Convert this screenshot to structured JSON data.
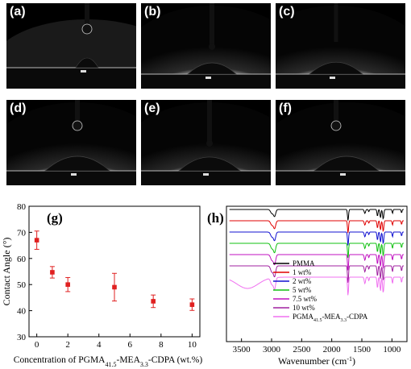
{
  "panels": [
    {
      "label": "(a)",
      "contact_angle_deg": 67
    },
    {
      "label": "(b)",
      "contact_angle_deg": 55
    },
    {
      "label": "(c)",
      "contact_angle_deg": 50
    },
    {
      "label": "(d)",
      "contact_angle_deg": 49
    },
    {
      "label": "(e)",
      "contact_angle_deg": 44
    },
    {
      "label": "(f)",
      "contact_angle_deg": 42
    }
  ],
  "chart_data": [
    {
      "panel_label": "(g)",
      "type": "scatter",
      "xlabel_parts": [
        "Concentration of PGMA",
        "41.5",
        "-MEA",
        "3.3",
        "-CDPA (wt.%)"
      ],
      "ylabel": "Contact Angle (°)",
      "xlim": [
        -0.5,
        10.5
      ],
      "ylim": [
        30,
        80
      ],
      "xticks": [
        0,
        2,
        4,
        6,
        8,
        10
      ],
      "yticks": [
        30,
        40,
        50,
        60,
        70,
        80
      ],
      "series": [
        {
          "color": "#e02020",
          "x": [
            0,
            1,
            2,
            5,
            7.5,
            10
          ],
          "y": [
            67,
            54.7,
            50,
            49,
            43.6,
            42.3
          ],
          "err": [
            3.5,
            2.2,
            2.7,
            5.3,
            2.4,
            2.2
          ]
        }
      ]
    },
    {
      "panel_label": "(h)",
      "type": "line",
      "xlabel": "Wavenumber (cm",
      "xlabel_sup": "-1",
      "xlabel_end": ")",
      "xlim": [
        3750,
        750
      ],
      "xticks": [
        3500,
        3000,
        2500,
        2000,
        1500,
        1000
      ],
      "series": [
        {
          "name": "PMMA",
          "color": "#000000",
          "offset": 0
        },
        {
          "name": "1 wt%",
          "color": "#e00000",
          "offset": 1
        },
        {
          "name": "2 wt%",
          "color": "#1010d0",
          "offset": 2
        },
        {
          "name": "5 wt%",
          "color": "#10c010",
          "offset": 3
        },
        {
          "name": "7.5 wt%",
          "color": "#c010c0",
          "offset": 4
        },
        {
          "name": "10 wt%",
          "color": "#a020a0",
          "offset": 5
        },
        {
          "name": "PGMA41.5-MEA3.3-CDPA",
          "color": "#f070f0",
          "offset": 6
        }
      ],
      "legend": [
        {
          "parts": [
            "PMMA"
          ],
          "color": "#000000"
        },
        {
          "parts": [
            "1 wt%"
          ],
          "color": "#e00000"
        },
        {
          "parts": [
            "2 wt%"
          ],
          "color": "#1010d0"
        },
        {
          "parts": [
            "5 wt%"
          ],
          "color": "#10c010"
        },
        {
          "parts": [
            "7.5 wt%"
          ],
          "color": "#c010c0"
        },
        {
          "parts": [
            "10 wt%"
          ],
          "color": "#a020a0"
        },
        {
          "parts": [
            "PGMA",
            "41.5",
            "-MEA",
            "3.3",
            "-CDPA"
          ],
          "color": "#f070f0"
        }
      ]
    }
  ]
}
